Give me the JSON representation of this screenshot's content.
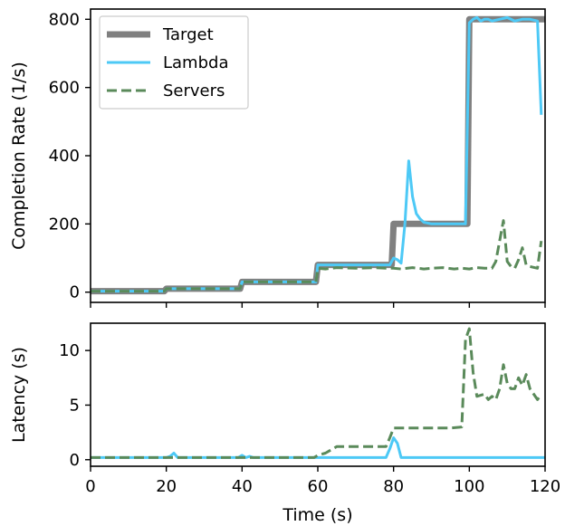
{
  "chart_data": [
    {
      "type": "line",
      "ylabel": "Completion Rate (1/s)",
      "xlim": [
        0,
        120
      ],
      "ylim": [
        -30,
        830
      ],
      "yticks": [
        0,
        200,
        400,
        600,
        800
      ],
      "ytick_labels": [
        "0",
        "200",
        "400",
        "600",
        "800"
      ],
      "legend_position": "top-left",
      "series": [
        {
          "name": "Target",
          "color": "#808080",
          "style": "solid-thick",
          "x": [
            0,
            19.5,
            20,
            39.5,
            40,
            59.5,
            60,
            79.5,
            80,
            99.5,
            100,
            120
          ],
          "y": [
            3,
            3,
            10,
            10,
            30,
            30,
            80,
            80,
            200,
            200,
            800,
            800
          ]
        },
        {
          "name": "Lambda",
          "color": "#4dc9f6",
          "style": "solid",
          "x": [
            0,
            19.5,
            20,
            39.5,
            40,
            59.5,
            60,
            79,
            80,
            81,
            82,
            83,
            84,
            85,
            86,
            87,
            88,
            90,
            95,
            99,
            100,
            101,
            102,
            103,
            104,
            105,
            106,
            108,
            110,
            112,
            114,
            116,
            118,
            119
          ],
          "y": [
            3,
            3,
            10,
            10,
            30,
            30,
            80,
            80,
            100,
            95,
            85,
            200,
            385,
            280,
            230,
            215,
            205,
            200,
            200,
            200,
            790,
            800,
            805,
            795,
            800,
            800,
            795,
            800,
            805,
            795,
            800,
            800,
            795,
            520
          ]
        },
        {
          "name": "Servers",
          "color": "#5a8a5a",
          "style": "dashed",
          "x": [
            0,
            19.5,
            20,
            39.5,
            40,
            59.5,
            60,
            62,
            65,
            70,
            75,
            78,
            80,
            82,
            85,
            88,
            90,
            93,
            96,
            98,
            100,
            102,
            104,
            106,
            107,
            108,
            109,
            110,
            111,
            112,
            113,
            114,
            115,
            116,
            118,
            119
          ],
          "y": [
            3,
            3,
            10,
            10,
            30,
            30,
            70,
            68,
            72,
            70,
            72,
            70,
            70,
            68,
            72,
            68,
            70,
            72,
            68,
            70,
            68,
            72,
            70,
            70,
            90,
            150,
            210,
            90,
            75,
            70,
            95,
            130,
            80,
            75,
            70,
            150
          ]
        }
      ]
    },
    {
      "type": "line",
      "xlabel": "Time (s)",
      "ylabel": "Latency (s)",
      "xlim": [
        0,
        120
      ],
      "ylim": [
        -0.6,
        12.5
      ],
      "xticks": [
        0,
        20,
        40,
        60,
        80,
        100,
        120
      ],
      "xtick_labels": [
        "0",
        "20",
        "40",
        "60",
        "80",
        "100",
        "120"
      ],
      "yticks": [
        0,
        5,
        10
      ],
      "ytick_labels": [
        "0",
        "5",
        "10"
      ],
      "series": [
        {
          "name": "Lambda",
          "color": "#4dc9f6",
          "style": "solid",
          "x": [
            0,
            20,
            21,
            22,
            23,
            24,
            39,
            40,
            41,
            42,
            43,
            60,
            78,
            79,
            80,
            81,
            82,
            85,
            120
          ],
          "y": [
            0.2,
            0.2,
            0.3,
            0.6,
            0.2,
            0.2,
            0.2,
            0.4,
            0.2,
            0.3,
            0.2,
            0.2,
            0.2,
            1.0,
            2.0,
            1.5,
            0.2,
            0.2,
            0.2
          ]
        },
        {
          "name": "Servers",
          "color": "#5a8a5a",
          "style": "dashed",
          "x": [
            0,
            20,
            40,
            59,
            60,
            62,
            65,
            70,
            75,
            78,
            79,
            80,
            85,
            90,
            95,
            98,
            99,
            100,
            101,
            102,
            104,
            105,
            106,
            107,
            108,
            109,
            110,
            111,
            112,
            113,
            114,
            115,
            116,
            117,
            118,
            119
          ],
          "y": [
            0.2,
            0.2,
            0.2,
            0.2,
            0.4,
            0.6,
            1.2,
            1.2,
            1.2,
            1.2,
            2.0,
            2.9,
            2.9,
            2.9,
            2.9,
            3.0,
            11.0,
            12.0,
            8.0,
            5.8,
            6.0,
            5.5,
            5.8,
            5.5,
            6.5,
            8.7,
            7.0,
            6.5,
            6.5,
            7.5,
            6.8,
            7.8,
            6.5,
            6.0,
            5.5,
            6.0
          ]
        }
      ]
    }
  ]
}
